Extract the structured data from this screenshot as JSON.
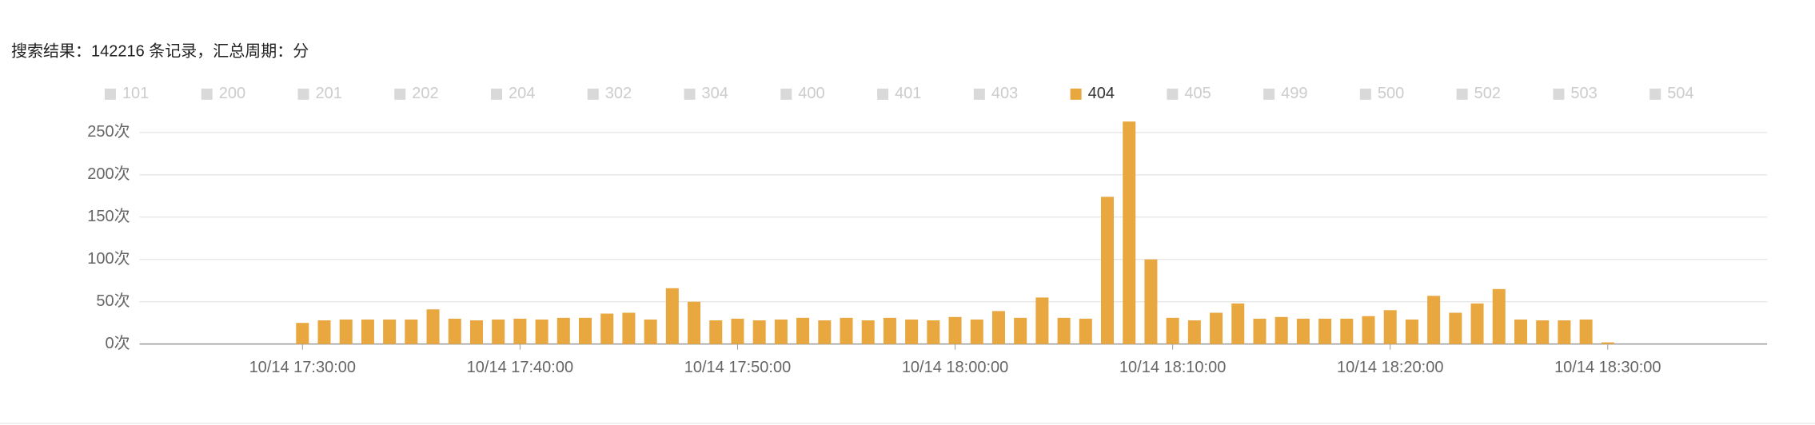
{
  "chart_data": {
    "type": "bar",
    "title": "搜索结果：142216 条记录，汇总周期：分",
    "legend_items": [
      "101",
      "200",
      "201",
      "202",
      "204",
      "302",
      "304",
      "400",
      "401",
      "403",
      "404",
      "405",
      "499",
      "500",
      "502",
      "503",
      "504"
    ],
    "legend_active": "404",
    "inactive_color": "#d9d9d9",
    "categories": [
      "10/14 17:30:00",
      "10/14 17:31:00",
      "10/14 17:32:00",
      "10/14 17:33:00",
      "10/14 17:34:00",
      "10/14 17:35:00",
      "10/14 17:36:00",
      "10/14 17:37:00",
      "10/14 17:38:00",
      "10/14 17:39:00",
      "10/14 17:40:00",
      "10/14 17:41:00",
      "10/14 17:42:00",
      "10/14 17:43:00",
      "10/14 17:44:00",
      "10/14 17:45:00",
      "10/14 17:46:00",
      "10/14 17:47:00",
      "10/14 17:48:00",
      "10/14 17:49:00",
      "10/14 17:50:00",
      "10/14 17:51:00",
      "10/14 17:52:00",
      "10/14 17:53:00",
      "10/14 17:54:00",
      "10/14 17:55:00",
      "10/14 17:56:00",
      "10/14 17:57:00",
      "10/14 17:58:00",
      "10/14 17:59:00",
      "10/14 18:00:00",
      "10/14 18:01:00",
      "10/14 18:02:00",
      "10/14 18:03:00",
      "10/14 18:04:00",
      "10/14 18:05:00",
      "10/14 18:06:00",
      "10/14 18:07:00",
      "10/14 18:08:00",
      "10/14 18:09:00",
      "10/14 18:10:00",
      "10/14 18:11:00",
      "10/14 18:12:00",
      "10/14 18:13:00",
      "10/14 18:14:00",
      "10/14 18:15:00",
      "10/14 18:16:00",
      "10/14 18:17:00",
      "10/14 18:18:00",
      "10/14 18:19:00",
      "10/14 18:20:00",
      "10/14 18:21:00",
      "10/14 18:22:00",
      "10/14 18:23:00",
      "10/14 18:24:00",
      "10/14 18:25:00",
      "10/14 18:26:00",
      "10/14 18:27:00",
      "10/14 18:28:00",
      "10/14 18:29:00",
      "10/14 18:30:00"
    ],
    "xticks": [
      "10/14 17:30:00",
      "10/14 17:40:00",
      "10/14 17:50:00",
      "10/14 18:00:00",
      "10/14 18:10:00",
      "10/14 18:20:00",
      "10/14 18:30:00"
    ],
    "series": [
      {
        "name": "404",
        "color": "#e8a73f",
        "values": [
          25,
          28,
          29,
          29,
          29,
          29,
          41,
          30,
          28,
          29,
          30,
          29,
          31,
          31,
          36,
          37,
          29,
          66,
          50,
          28,
          30,
          28,
          29,
          31,
          28,
          31,
          28,
          31,
          29,
          28,
          32,
          29,
          39,
          31,
          55,
          31,
          30,
          174,
          263,
          100,
          31,
          28,
          37,
          48,
          30,
          32,
          30,
          30,
          30,
          33,
          40,
          29,
          57,
          37,
          48,
          65,
          29,
          28,
          28,
          29,
          2
        ]
      }
    ],
    "ylim": [
      0,
      250
    ],
    "yticks": [
      {
        "value": 0,
        "label": "0次"
      },
      {
        "value": 50,
        "label": "50次"
      },
      {
        "value": 100,
        "label": "100次"
      },
      {
        "value": 150,
        "label": "150次"
      },
      {
        "value": 200,
        "label": "200次"
      },
      {
        "value": 250,
        "label": "250次"
      }
    ],
    "grid": true
  }
}
